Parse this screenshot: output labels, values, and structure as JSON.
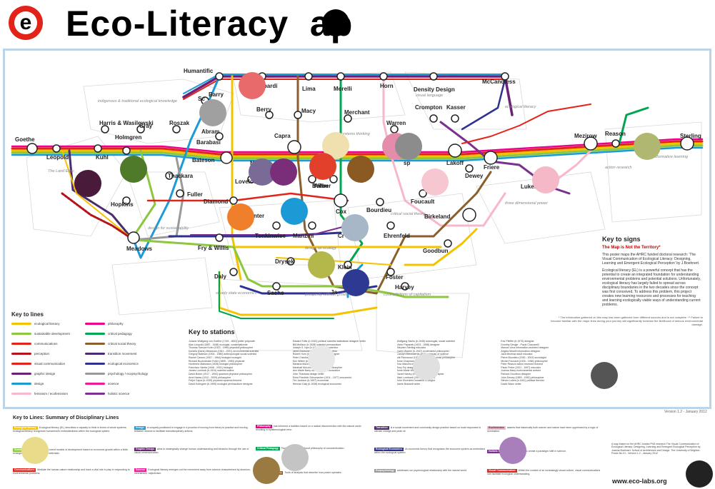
{
  "header": {
    "logo_letter": "e",
    "title": "Eco-Literacy  ap"
  },
  "line_colors": {
    "ecological_literacy": "#f4c300",
    "sustainable_development": "#8dc63f",
    "communications": "#e2231a",
    "perception": "#b5121b",
    "visual_communication": "#e2231a",
    "graphic_design": "#6d2077",
    "design": "#1c9ad6",
    "feminism": "#f7b8c9",
    "philosophy": "#ec008c",
    "critical_pedagogy": "#00a651",
    "critical_social_theory": "#8b5e2b",
    "transition_movement": "#4a2c6f",
    "ecological_economics": "#2e3192",
    "psychology": "#999999",
    "science": "#ed1c94",
    "holistic_science": "#7b2f8e"
  },
  "stations": {
    "humantific": "Humantific",
    "lombardi": "Lombardi",
    "lima": "Lima",
    "morelli": "Morelli",
    "horn": "Horn",
    "density_design": "Density Design",
    "mccandless": "McCandless",
    "barry": "Barry",
    "berry": "Berry",
    "macy": "Macy",
    "merchant": "Merchant",
    "crompton": "Crompton",
    "kasser": "Kasser",
    "harris_wasilewski": "Harris & Wasilewski",
    "gray": "Gray",
    "roszak": "Roszak",
    "abram": "Abram",
    "holmgren": "Holmgren",
    "barabasi": "Barabasi",
    "capra": "Capra",
    "warren": "Warren",
    "goethe": "Goethe",
    "leopold": "Leopold",
    "kuhl": "Kuhl",
    "bateson": "Bateson",
    "thackara": "Thackara",
    "fuller": "Fuller",
    "lovelock": "Lovelock",
    "bohm": "Bohm",
    "wilber": "Wilber",
    "lakoff": "Lakoff",
    "friere": "Friere",
    "mezirow": "Mezirow",
    "reason": "Reason",
    "sterling": "Sterling",
    "lukes": "Lukes",
    "dewey": "Dewey",
    "hopkins": "Hopkins",
    "diamond": "Diamond",
    "cox": "Cox",
    "bourdieu": "Bourdieu",
    "foucault": "Foucault",
    "birkeland": "Birkeland",
    "meadows": "Meadows",
    "fry_willis": "Fry & Willis",
    "tonkinwise": "Tonkinwise",
    "manzini": "Manzini",
    "ehrenfeld": "Ehrenfeld",
    "goodbun": "Goodbun",
    "drysek": "Drysek",
    "klein": "Klein",
    "daly": "Daly",
    "foster": "Foster",
    "sachs": "Sachs",
    "harvey": "Harvey",
    "naess": "Nae",
    "schumacher": "Sc",
    "leopold_short": "nter",
    "cr": "Cr",
    "ja": "Ja",
    "sp": "sp"
  },
  "annotations": {
    "a1": "indigenous &\ntraditional ecological knowledge",
    "a2": "deep ecology",
    "a3": "bioregionalism",
    "a4": "permaculture",
    "a5": "The Land Ethic",
    "a6": "systems thinking",
    "a7": "visual language",
    "a8": "critical social theory",
    "a9": "the critical loop",
    "a10": "ecological literacy",
    "a11": "social learning",
    "a12": "design for sustainability",
    "a13": "steady state economics",
    "a14": "transition thinking",
    "a15": "prosperity without growth",
    "a16": "contradictions of capitalism",
    "a17": "action research",
    "a18": "three dimensional power",
    "a19": "design as ecology",
    "a20": "transformative learning",
    "a21": "critical pedagogy"
  },
  "key_signs": {
    "title": "Key to signs",
    "sign": "The Map is Not the Territory*",
    "p1": "This poster maps the AHRC funded doctoral research: 'The Visual Communication of Ecological Literacy: Designing, Learning and Emergent Ecological Perception' by J.Boehnert.",
    "p2": "Ecological literacy (EL) is a powerful concept that has the potential to create an integrated foundation for understanding environmental problems and potential solutions. Unfortunately, ecological literacy has largely failed to spread across disciplinary boundaries in the two decades since the concept was first conceived. To address this problem, this project creates new learning resources and processes for teaching and learning ecologically viable ways of understanding current problems.",
    "note": "* The information gathered on this map has been gathered from different sources and is not complete. ** Failure to become familiar with the major lines during your journey will significantly increase the likelihood of serious environmental damage."
  },
  "key_lines": {
    "title": "Key to lines",
    "items": [
      {
        "label": "ecological literacy",
        "color": "#f4c300"
      },
      {
        "label": "philosophy",
        "color": "#ec008c"
      },
      {
        "label": "sustainable development",
        "color": "#8dc63f"
      },
      {
        "label": "critical pedagogy",
        "color": "#00a651"
      },
      {
        "label": "communications",
        "color": "#e2231a"
      },
      {
        "label": "critical social theory",
        "color": "#8b5e2b"
      },
      {
        "label": "perception",
        "color": "#b5121b"
      },
      {
        "label": "transition movement",
        "color": "#4a2c6f"
      },
      {
        "label": "visual communication",
        "color": "#e2231a"
      },
      {
        "label": "ecological economics",
        "color": "#2e3192"
      },
      {
        "label": "graphic design",
        "color": "#6d2077"
      },
      {
        "label": "psychology / ecopsychology",
        "color": "#999999"
      },
      {
        "label": "design",
        "color": "#1c9ad6"
      },
      {
        "label": "science",
        "color": "#ed1c94"
      },
      {
        "label": "feminism / ecofeminism",
        "color": "#f7b8c9"
      },
      {
        "label": "holistic science",
        "color": "#7b2f8e"
      }
    ]
  },
  "key_stations": {
    "title": "Key to stations",
    "col1": [
      "Johann Wolfgang von Goethe (1749 - 1832) writer polymath",
      "Aldo Leopold (1887 - 1948) ecologist, conservationist",
      "Thomas Samuel Kuhn (1922 - 1996) physicist philosopher",
      "Donella (Dana) Meadows (1941 - 2001) environmental scientist",
      "Gregory Bateson (1904 - 1980) anthropologist social scientist",
      "Rachel Carson (1907 - 1964) biologist ecologist",
      "Richard Buckminster Fuller (1895 - 1983) physicist",
      "Humberto Maturana (1928) biologist philosopher",
      "Francisco Varela (1946 - 2001) biologist",
      "James Lovelock (b.1919) scientist author",
      "David Bohm (1917 - 1992) quantum physicist philosopher",
      "Arne Naess (1912 - 2009) philosopher",
      "Fritjof Capra (b.1939) physicist systems theorist",
      "David Holmgren (b.1955) ecologist permaculture designer"
    ],
    "col2": [
      "Edward Tufte (b.1942) political scientist statistician designer writer",
      "Bill Mollison (b.1928) scientist permaculture",
      "Joseph S. Nye (b.1937) political scientist",
      "Jared Diamond (b.1937) scientist author",
      "Robert Horn (b.1942) information designer",
      "Peter Checkland systems scientist",
      "Ken Wilber (b.1949) philosopher",
      "Mariana Mazzucato economist",
      "Marshall McLuhan (1911 - 1980) philosopher",
      "Ann Marie Barry scholar of communication",
      "John Thackara design writer",
      "Ernst Friedrich Schumacher (1911 - 1977) economist",
      "Tim Jackson (b.1957) economist",
      "Herman Daly (b.1938) ecological economist"
    ],
    "col3": [
      "Wolfgang Sachs (b.1946) sociologist, social scientist",
      "Victor Papanek (1923 - 1998) designer",
      "Stephen Sterling educator",
      "Karen Warren (b.1947) ecofeminist philosopher",
      "Carolyn Merchant (b.1936) historian of science",
      "Val Plumwood (1939 - 2008) ecofeminist philosopher",
      "Anne Chapman environmentalist",
      "Ezio Manzini design professor",
      "Tony Fry design theorist",
      "Anne-Marie Willis design theorist",
      "David Harvey (b.1935) Marxist geographer",
      "Mark Lombardi (1951 - 2000) artist",
      "John Ehrenfeld industrial ecologist",
      "Jamie Brassett writer"
    ],
    "col4": [
      "Eric Pfeiffer (b.1970) designer",
      "Dorothy Design - Paolo Ciuccarelli",
      "Manuel Lima information architect designer",
      "Angela Morelli information designer",
      "Jack Mezirow adult educator",
      "Pierre Bourdieu (1930 - 2002) sociologist",
      "Michel Foucault (1926 - 1984) philosopher",
      "Peter Reason action research theorist",
      "Paulo Freire (1921 - 1997) educator",
      "Joanna Macy environmental activist",
      "Richard Goodbun designer",
      "John Dewey (1859 - 1952) philosopher",
      "Steven Lukes (b.1941) political theorist",
      "David Wann writer"
    ]
  },
  "version": "Version 1.2 - January 2012",
  "summary": {
    "title": "Key to Lines: Summary of Disciplinary Lines",
    "p1_tag": "Ecological literacy",
    "p1": "Ecological literacy (EL) describes a capacity to think in terms of whole systems; ecological literacy recognises humankind's embeddedness within the ecological system.",
    "p2_tag": "Sustainable development",
    "p2": "Current models of development based on economic growth within a finite ecological system are entirely problematic.",
    "p3_tag": "Communications",
    "p3": "Mediate the human-nature relationship and have a vital role to play in responding to environmental problems.",
    "p4_tag": "Design",
    "p4": "is uniquely positioned to engage in a process of moving from theory to practice and moving between sectors to facilitate transdisciplinary actions.",
    "p5_tag": "Graphic Design",
    "p5": "aims to strategically change human understanding and behavior through the use of visual communication.",
    "p6_tag": "Science",
    "p6": "Ecological literacy emerges out the movement away from science characterised by atomism, mechanism, objectivism.",
    "p7_tag": "Philosophy",
    "p7": "has informed a tradition based on a radical disconnection with the natural world resulting in epistemological error.",
    "p8_tag": "Critical Pedagogy",
    "p8": "Paulo Freire's educational philosophy of conscientization.",
    "p9_tag": "Critical social theory",
    "p9": "Tools of analysis that describe how power operates.",
    "p10_tag": "Transition",
    "p10": "is a social movement and community design practice based on local responses to climate change and peak oil.",
    "p11_tag": "Ecological Economics",
    "p11": "An economic theory that recognises the economic system as embedded within the ecological system.",
    "p12_tag": "Ecopsychology",
    "p12": "addresses our psychological relationship with the natural world.",
    "p13_tag": "Ecofeminism",
    "p13": "asserts that historically both women and nature have been oppressed by a logic of domination.",
    "p14_tag": "Holistic Science",
    "p14": "is an attempt to create a paradigm shift in science.",
    "p15_tag": "Visual Communication",
    "p15": "Within the context of an increasingly visual culture, visual communications can facilitate ecological understanding."
  },
  "credit": "A map based on the AHRC funded PhD research The Visual Communication of Ecological Literacy: Designing, Learning and Emergent Ecological Perception by Joanna Boehnert. School of Architecture and Design, The University of Brighton. Praxis No.01 - Version 1.2 - January 2012",
  "url": "www.eco-labs.org"
}
